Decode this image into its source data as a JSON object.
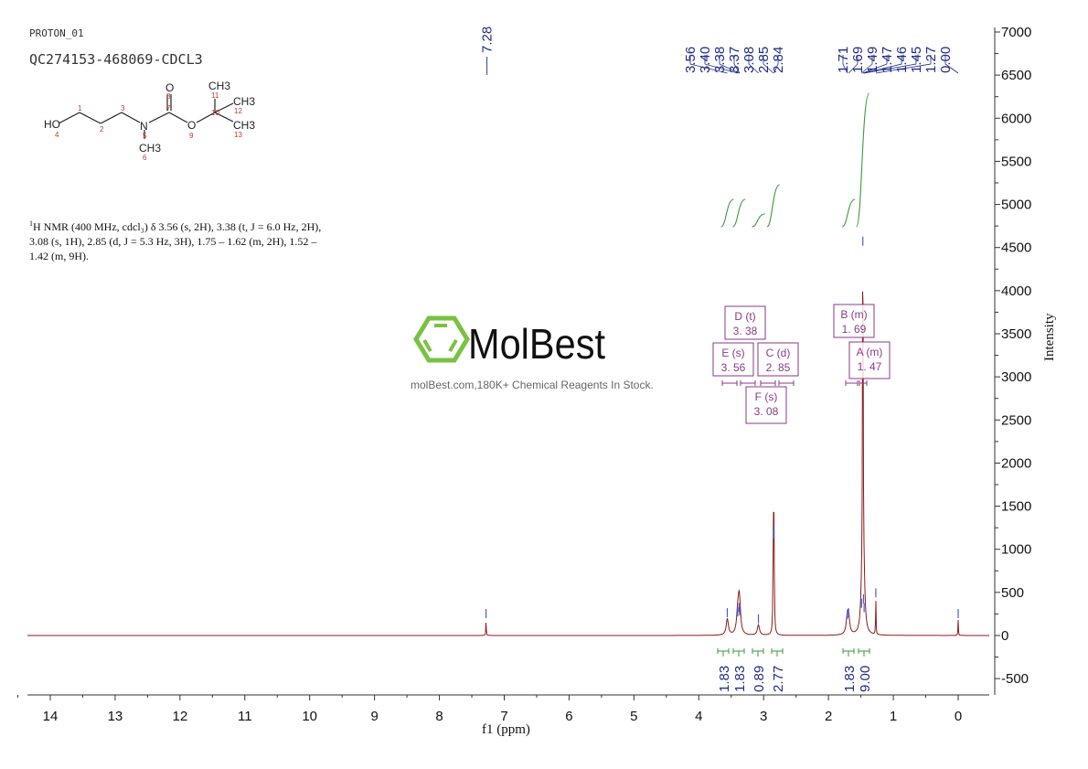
{
  "header": {
    "experiment": "PROTON_01",
    "sample_id": "QC274153-468069-CDCL3"
  },
  "structure": {
    "atoms": [
      {
        "label": "HO",
        "num": "4"
      },
      {
        "label": "",
        "num": "1"
      },
      {
        "label": "",
        "num": "2"
      },
      {
        "label": "",
        "num": "3"
      },
      {
        "label": "N",
        "num": "5"
      },
      {
        "label": "CH3",
        "num": "6"
      },
      {
        "label": "",
        "num": "7"
      },
      {
        "label": "O",
        "num": "8"
      },
      {
        "label": "O",
        "num": "9"
      },
      {
        "label": "",
        "num": "10"
      },
      {
        "label": "CH3",
        "num": "11"
      },
      {
        "label": "CH3",
        "num": "12"
      },
      {
        "label": "CH3",
        "num": "13"
      }
    ]
  },
  "description": {
    "line1": "H NMR (400 MHz, cdcl₃) δ 3.56 (s, 2H), 3.38 (t, J = 6.0 Hz, 2H),",
    "sup": "1",
    "line2": "3.08 (s, 1H), 2.85 (d, J = 5.3 Hz, 3H), 1.75 – 1.62 (m, 2H), 1.52 –",
    "line3": "1.42 (m, 9H)."
  },
  "watermark": {
    "brand": "MolBest",
    "tagline": "molBest.com,180K+ Chemical Reagents In Stock.",
    "color": "#7ac143"
  },
  "colors": {
    "spectrum": "#8b1a1a",
    "peak_labels": "#1f2a8a",
    "integrals": "#3a9a3a",
    "multiplet_boxes": "#8a3a8a",
    "axis": "#333333"
  },
  "chart_data": {
    "type": "line",
    "title": "QC274153-468069-CDCL3",
    "xlabel": "f1 (ppm)",
    "ylabel": "Intensity",
    "xlim": [
      14.5,
      -0.5
    ],
    "ylim": [
      -700,
      7000
    ],
    "x_ticks": [
      "14",
      "13",
      "12",
      "11",
      "10",
      "9",
      "8",
      "7",
      "6",
      "5",
      "4",
      "3",
      "2",
      "1",
      "0"
    ],
    "y_ticks": [
      "7000",
      "6500",
      "6000",
      "5500",
      "5000",
      "4500",
      "4000",
      "3500",
      "3000",
      "2500",
      "2000",
      "1500",
      "1000",
      "500",
      "0",
      "-500"
    ],
    "peaks": [
      {
        "ppm": 7.28,
        "intensity": 180
      },
      {
        "ppm": 3.56,
        "intensity": 190
      },
      {
        "ppm": 3.4,
        "intensity": 200
      },
      {
        "ppm": 3.38,
        "intensity": 250
      },
      {
        "ppm": 3.37,
        "intensity": 210
      },
      {
        "ppm": 3.08,
        "intensity": 120
      },
      {
        "ppm": 2.85,
        "intensity": 1150
      },
      {
        "ppm": 2.84,
        "intensity": 1100
      },
      {
        "ppm": 1.71,
        "intensity": 170
      },
      {
        "ppm": 1.69,
        "intensity": 190
      },
      {
        "ppm": 1.49,
        "intensity": 300
      },
      {
        "ppm": 1.47,
        "intensity": 4500
      },
      {
        "ppm": 1.46,
        "intensity": 350
      },
      {
        "ppm": 1.45,
        "intensity": 250
      },
      {
        "ppm": 1.27,
        "intensity": 420
      },
      {
        "ppm": 0.0,
        "intensity": 180
      }
    ],
    "peak_labels_group1": [
      "3.56",
      "3.40",
      "3.38",
      "3.37",
      "3.08",
      "2.85",
      "2.84"
    ],
    "peak_labels_group2": [
      "1.71",
      "1.69",
      "1.49",
      "1.47",
      "1.46",
      "1.45",
      "1.27",
      "0.00"
    ],
    "peak_label_single": "7.28",
    "integrals": [
      {
        "center": 3.56,
        "value": "1.83"
      },
      {
        "center": 3.38,
        "value": "1.83"
      },
      {
        "center": 3.08,
        "value": "0.89"
      },
      {
        "center": 2.85,
        "value": "2.77"
      },
      {
        "center": 1.69,
        "value": "1.83"
      },
      {
        "center": 1.47,
        "value": "9.00"
      }
    ],
    "multiplets": [
      {
        "id": "D",
        "type": "(t)",
        "shift": "3.38"
      },
      {
        "id": "E",
        "type": "(s)",
        "shift": "3.56"
      },
      {
        "id": "C",
        "type": "(d)",
        "shift": "2.85"
      },
      {
        "id": "F",
        "type": "(s)",
        "shift": "3.08"
      },
      {
        "id": "B",
        "type": "(m)",
        "shift": "1.69"
      },
      {
        "id": "A",
        "type": "(m)",
        "shift": "1.47"
      }
    ]
  }
}
